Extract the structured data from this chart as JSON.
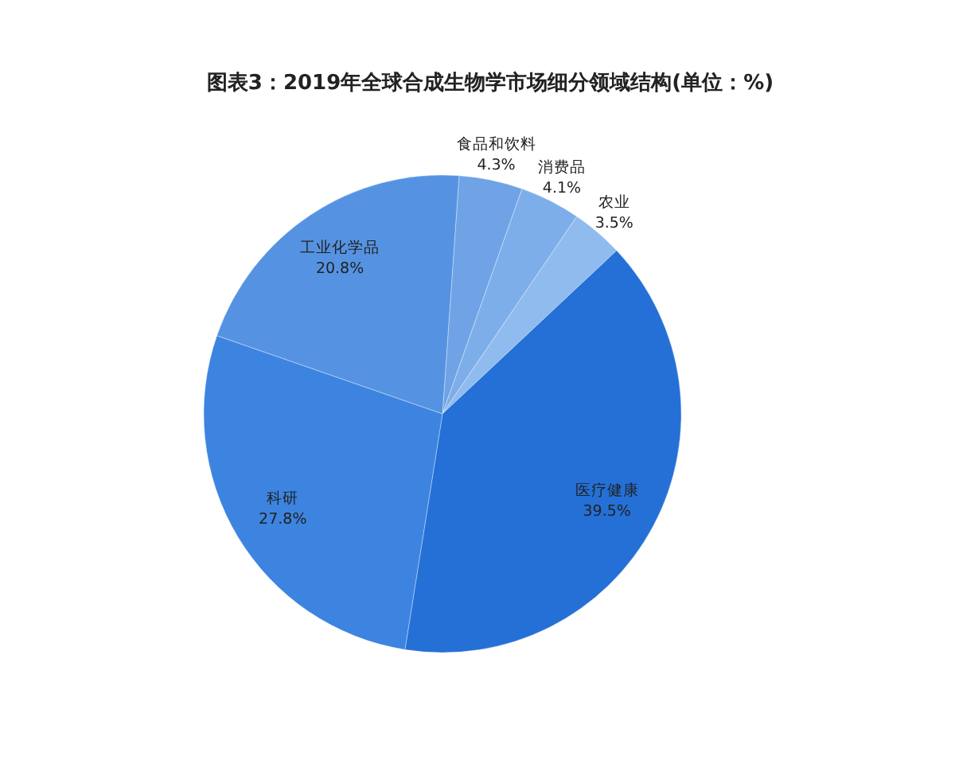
{
  "chart_data": {
    "type": "pie",
    "title": "图表3：2019年全球合成生物学市场细分领域结构(单位：%)",
    "categories": [
      "食品和饮料",
      "消费品",
      "农业",
      "医疗健康",
      "科研",
      "工业化学品"
    ],
    "values": [
      4.3,
      4.1,
      3.5,
      39.5,
      27.8,
      20.8
    ],
    "value_labels": [
      "4.3%",
      "4.1%",
      "3.5%",
      "39.5%",
      "27.8%",
      "20.8%"
    ],
    "colors": [
      "#6fa3e6",
      "#7eaeea",
      "#8fbbef",
      "#2470d6",
      "#3c84e0",
      "#5593e2"
    ]
  }
}
